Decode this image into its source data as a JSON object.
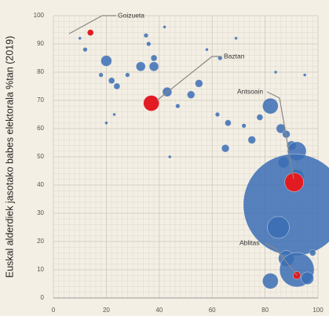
{
  "chart_data": {
    "type": "scatter",
    "y_label": "Euskal alderdiek jasotako babes elektorala %tan (2019)",
    "xlim": [
      0,
      100
    ],
    "ylim": [
      0,
      100
    ],
    "xticks": [
      0,
      20,
      40,
      60,
      80,
      100
    ],
    "yticks": [
      0,
      10,
      20,
      30,
      40,
      50,
      60,
      70,
      80,
      90,
      100
    ],
    "grid": true,
    "series": [
      {
        "color": "#3a6db5",
        "x": [
          10,
          12,
          20,
          18,
          22,
          24,
          28,
          33,
          36,
          38,
          38,
          43,
          47,
          52,
          55,
          62,
          65,
          66,
          72,
          75,
          78,
          82,
          86,
          88,
          90,
          92,
          87,
          92,
          91,
          85,
          88,
          92,
          82,
          96,
          98,
          95,
          84,
          63,
          23,
          20,
          44,
          58,
          69,
          35,
          42
        ],
        "values": [
          92,
          88,
          84,
          79,
          77,
          75,
          79,
          82,
          90,
          85,
          82,
          73,
          68,
          72,
          76,
          65,
          53,
          62,
          61,
          56,
          64,
          68,
          60,
          58,
          54,
          52,
          48,
          43,
          33,
          25,
          14,
          10,
          6,
          7,
          16,
          79,
          80,
          85,
          65,
          62,
          50,
          88,
          92,
          93,
          96
        ],
        "sizes": [
          1,
          2,
          12,
          2,
          4,
          4,
          2,
          9,
          2,
          4,
          9,
          9,
          2,
          6,
          6,
          2,
          6,
          4,
          2,
          6,
          4,
          25,
          9,
          6,
          9,
          36,
          12,
          20,
          1050,
          49,
          25,
          121,
          25,
          16,
          4,
          1,
          1,
          2,
          1,
          1,
          1,
          1,
          1,
          2,
          1
        ]
      },
      {
        "color": "#e21b23",
        "x": [
          14,
          37,
          91,
          92
        ],
        "values": [
          94,
          69,
          41,
          8
        ],
        "sizes": [
          4,
          25,
          36,
          6
        ]
      }
    ],
    "annotations": [
      {
        "text": "Goizueta"
      },
      {
        "text": "Baztan"
      },
      {
        "text": "Antsoain"
      },
      {
        "text": "Ablitas"
      }
    ]
  }
}
